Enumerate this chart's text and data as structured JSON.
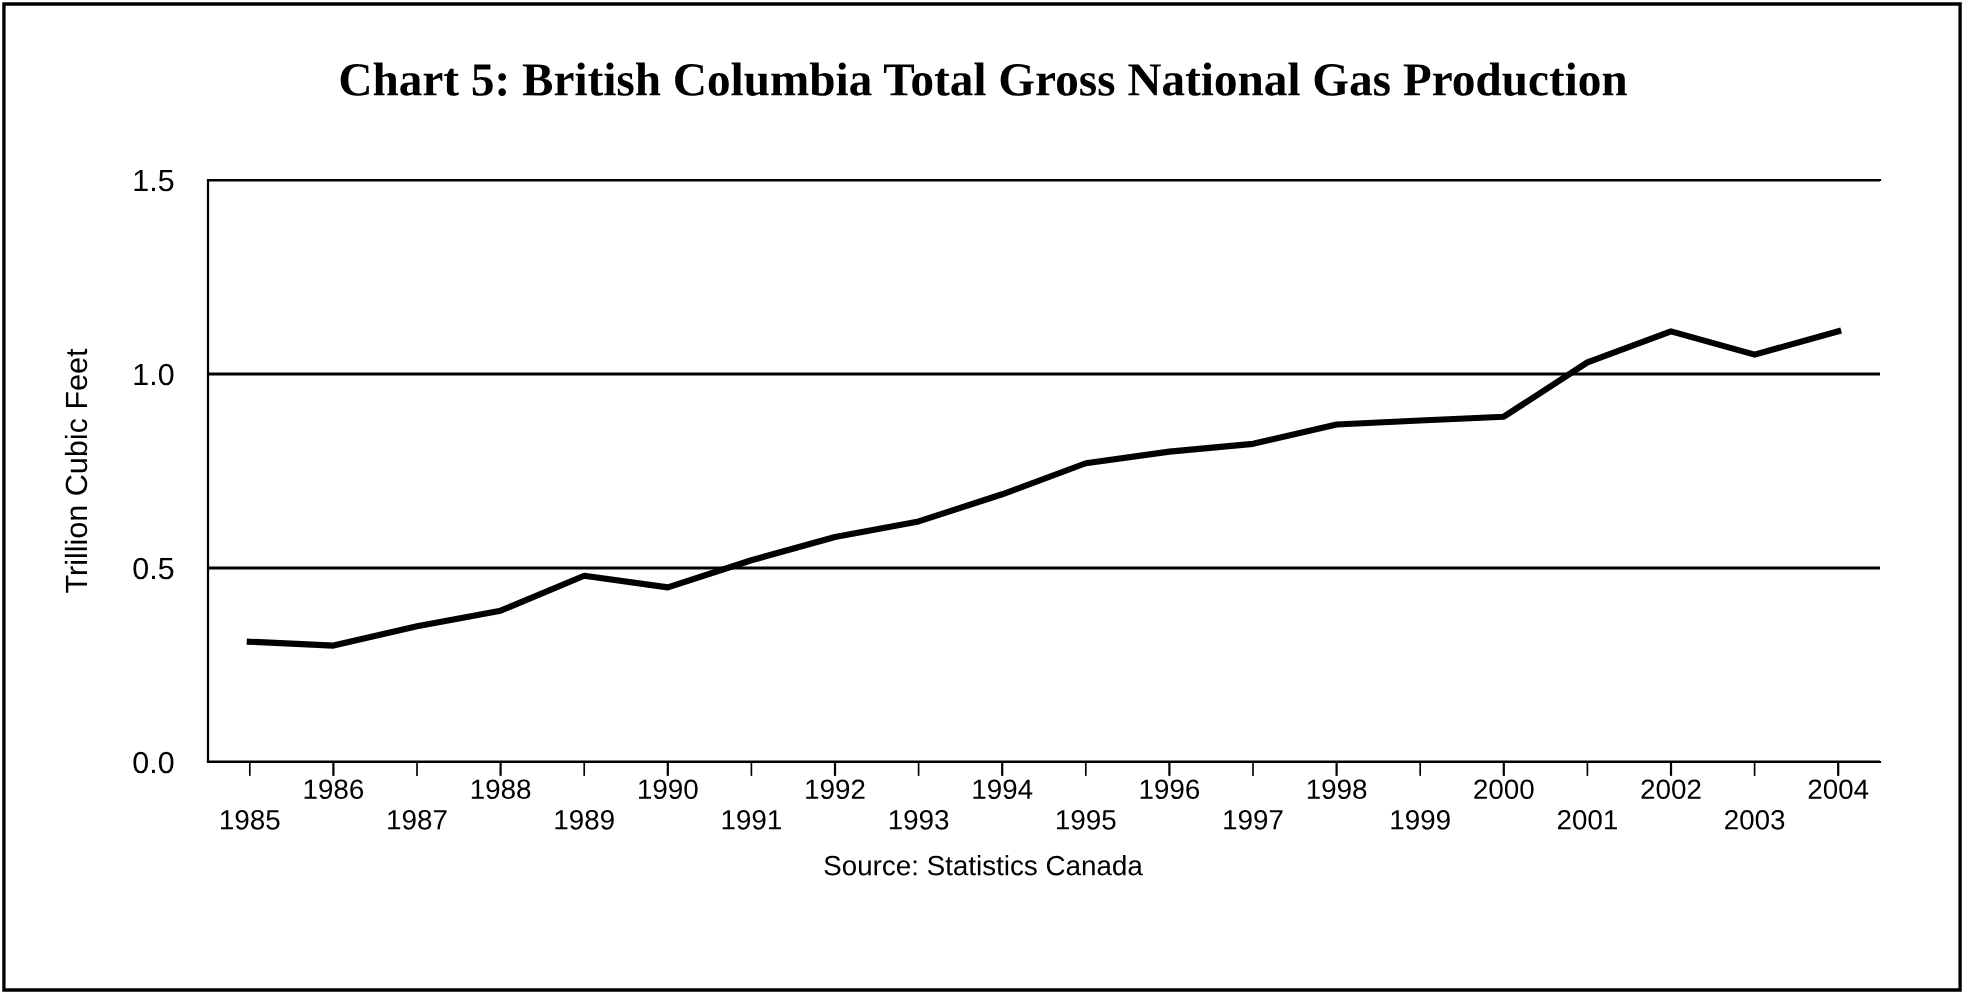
{
  "chart_data": {
    "type": "line",
    "title": "Chart 5: British Columbia Total Gross National Gas Production",
    "ylabel": "Trillion Cubic Feet",
    "categories": [
      "1985",
      "1986",
      "1987",
      "1988",
      "1989",
      "1990",
      "1991",
      "1992",
      "1993",
      "1994",
      "1995",
      "1996",
      "1997",
      "1998",
      "1999",
      "2000",
      "2001",
      "2002",
      "2003",
      "2004"
    ],
    "series": [
      {
        "color": "#000000",
        "values": [
          0.31,
          0.3,
          0.35,
          0.39,
          0.48,
          0.45,
          0.52,
          0.58,
          0.62,
          0.69,
          0.77,
          0.8,
          0.82,
          0.87,
          0.88,
          0.89,
          1.03,
          1.11,
          1.05,
          1.11
        ]
      }
    ],
    "ylim": [
      0.0,
      1.5
    ],
    "yticks": [
      {
        "value": 0.0,
        "label": "0.0"
      },
      {
        "value": 0.5,
        "label": "0.5"
      },
      {
        "value": 1.0,
        "label": "1.0"
      },
      {
        "value": 1.5,
        "label": "1.5"
      }
    ],
    "grid": "y",
    "legend": false,
    "marker": "none",
    "line_style": "solid",
    "annotations": [
      "Source: Statistics Canada"
    ]
  }
}
